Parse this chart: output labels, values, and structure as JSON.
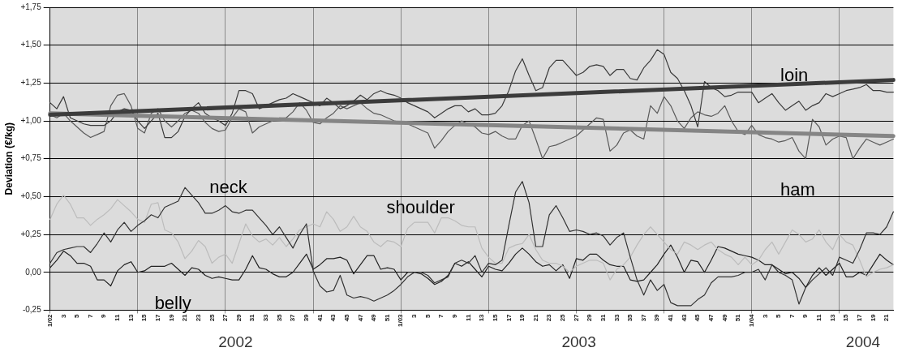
{
  "chart_data": {
    "type": "line",
    "ylabel": "Deviation (€/kg)",
    "categories": [
      "1/02",
      null,
      "3",
      null,
      "5",
      null,
      "7",
      null,
      "9",
      null,
      "11",
      null,
      "13",
      null,
      "15",
      null,
      "17",
      null,
      "19",
      null,
      "21",
      null,
      "23",
      null,
      "25",
      null,
      "27",
      null,
      "29",
      null,
      "31",
      null,
      "33",
      null,
      "35",
      null,
      "37",
      null,
      "39",
      null,
      "41",
      null,
      "43",
      null,
      "45",
      null,
      "47",
      null,
      "49",
      null,
      "51",
      null,
      "1/03",
      null,
      "3",
      null,
      "5",
      null,
      "7",
      null,
      "9",
      null,
      "11",
      null,
      "13",
      null,
      "15",
      null,
      "17",
      null,
      "19",
      null,
      "21",
      null,
      "23",
      null,
      "25",
      null,
      "27",
      null,
      "29",
      null,
      "31",
      null,
      "33",
      null,
      "35",
      null,
      "37",
      null,
      "39",
      null,
      "41",
      null,
      "43",
      null,
      "45",
      null,
      "47",
      null,
      "49",
      null,
      "51",
      null,
      "1/04",
      null,
      "3",
      null,
      "5",
      null,
      "7",
      null,
      "9",
      null,
      "11",
      null,
      "13",
      null,
      "15",
      null,
      "17",
      null,
      "19",
      null,
      "21",
      null
    ],
    "series": [
      {
        "color": "#3c3c3c",
        "values": [
          1.04,
          null,
          null,
          null,
          null,
          null,
          null,
          null,
          null,
          null,
          null,
          null,
          null,
          null,
          null,
          null,
          null,
          null,
          null,
          null,
          null,
          null,
          null,
          null,
          null,
          null,
          null,
          null,
          null,
          null,
          null,
          null,
          null,
          null,
          null,
          null,
          null,
          null,
          null,
          null,
          null,
          null,
          null,
          null,
          null,
          null,
          null,
          null,
          null,
          null,
          null,
          null,
          null,
          null,
          null,
          null,
          null,
          null,
          null,
          null,
          null,
          null,
          null,
          null,
          null,
          null,
          null,
          null,
          null,
          null,
          null,
          null,
          null,
          null,
          null,
          null,
          null,
          null,
          null,
          null,
          null,
          null,
          null,
          null,
          null,
          null,
          null,
          null,
          null,
          null,
          null,
          null,
          null,
          null,
          null,
          null,
          null,
          null,
          null,
          null,
          null,
          null,
          null,
          null,
          null,
          null,
          null,
          null,
          null,
          null,
          null,
          null,
          null,
          null,
          null,
          null,
          null,
          null,
          null,
          null,
          null,
          null,
          null,
          null,
          null,
          1.27
        ]
      },
      {
        "color": "#858585",
        "values": [
          1.05,
          null,
          null,
          null,
          null,
          null,
          null,
          null,
          null,
          null,
          null,
          null,
          null,
          null,
          null,
          null,
          null,
          null,
          null,
          null,
          null,
          null,
          null,
          null,
          null,
          null,
          null,
          null,
          null,
          null,
          null,
          null,
          null,
          null,
          null,
          null,
          null,
          null,
          null,
          null,
          null,
          null,
          null,
          null,
          null,
          null,
          null,
          null,
          null,
          null,
          null,
          null,
          null,
          null,
          null,
          null,
          null,
          null,
          null,
          null,
          null,
          null,
          null,
          null,
          null,
          null,
          null,
          null,
          null,
          null,
          null,
          null,
          null,
          null,
          null,
          null,
          null,
          null,
          null,
          null,
          null,
          null,
          null,
          null,
          null,
          null,
          null,
          null,
          null,
          null,
          null,
          null,
          null,
          null,
          null,
          null,
          null,
          null,
          null,
          null,
          null,
          null,
          null,
          null,
          null,
          null,
          null,
          null,
          null,
          null,
          null,
          null,
          null,
          null,
          null,
          null,
          null,
          null,
          null,
          null,
          null,
          null,
          null,
          null,
          null,
          0.9
        ]
      },
      {
        "name": "loin",
        "color": "#3a3a3a",
        "values": [
          1.12,
          1.08,
          1.16,
          1.02,
          1.0,
          0.98,
          0.97,
          0.97,
          0.97,
          1.0,
          1.06,
          1.08,
          1.07,
          1.0,
          0.95,
          1.0,
          1.05,
          0.89,
          0.89,
          0.93,
          1.03,
          1.08,
          1.12,
          1.05,
          1.02,
          1.0,
          0.97,
          1.05,
          1.2,
          1.2,
          1.18,
          1.08,
          1.1,
          1.12,
          1.14,
          1.15,
          1.18,
          1.16,
          1.14,
          1.12,
          1.1,
          1.15,
          1.12,
          1.08,
          1.1,
          1.13,
          1.17,
          1.14,
          1.18,
          1.2,
          1.18,
          1.17,
          1.15,
          1.12,
          1.1,
          1.08,
          1.06,
          1.02,
          1.05,
          1.08,
          1.1,
          1.1,
          1.06,
          1.08,
          1.04,
          1.04,
          1.05,
          1.1,
          1.2,
          1.33,
          1.41,
          1.3,
          1.2,
          1.22,
          1.35,
          1.4,
          1.4,
          1.35,
          1.3,
          1.32,
          1.36,
          1.37,
          1.36,
          1.3,
          1.34,
          1.34,
          1.28,
          1.27,
          1.35,
          1.4,
          1.47,
          1.44,
          1.32,
          1.28,
          1.2,
          1.1,
          0.96,
          1.26,
          1.22,
          1.2,
          1.16,
          1.17,
          1.19,
          1.19,
          1.19,
          1.12,
          1.15,
          1.18,
          1.12,
          1.07,
          1.1,
          1.13,
          1.07,
          1.1,
          1.12,
          1.18,
          1.16,
          1.18,
          1.2,
          1.21,
          1.22,
          1.24,
          1.2,
          1.2,
          1.19,
          1.19
        ]
      },
      {
        "name": "ham",
        "color": "#5a5a5a",
        "values": [
          1.04,
          1.02,
          1.05,
          1.0,
          0.96,
          0.92,
          0.89,
          0.91,
          0.93,
          1.1,
          1.17,
          1.18,
          1.1,
          0.95,
          0.92,
          1.05,
          1.08,
          1.0,
          0.96,
          1.0,
          1.05,
          1.07,
          1.05,
          0.99,
          0.95,
          0.93,
          0.94,
          1.02,
          1.08,
          1.06,
          0.92,
          0.96,
          0.98,
          1.0,
          1.02,
          1.02,
          1.06,
          1.12,
          1.07,
          0.99,
          0.98,
          1.02,
          1.05,
          1.1,
          1.08,
          1.1,
          1.12,
          1.08,
          1.05,
          1.04,
          1.02,
          1.0,
          0.99,
          0.98,
          0.96,
          0.94,
          0.92,
          0.82,
          0.87,
          0.93,
          0.97,
          1.0,
          0.98,
          0.96,
          0.92,
          0.91,
          0.93,
          0.9,
          0.88,
          0.88,
          0.97,
          1.0,
          0.88,
          0.75,
          0.83,
          0.84,
          0.86,
          0.88,
          0.9,
          0.94,
          0.98,
          1.02,
          1.01,
          0.8,
          0.84,
          0.92,
          0.94,
          0.9,
          0.88,
          1.1,
          1.05,
          1.16,
          1.1,
          1.0,
          0.95,
          1.02,
          1.06,
          1.04,
          1.03,
          1.05,
          1.1,
          1.0,
          0.93,
          0.91,
          0.97,
          0.91,
          0.89,
          0.88,
          0.86,
          0.87,
          0.89,
          0.8,
          0.75,
          1.01,
          0.96,
          0.84,
          0.88,
          0.9,
          0.89,
          0.75,
          0.82,
          0.88,
          0.86,
          0.84,
          0.86,
          0.88
        ]
      },
      {
        "name": "neck",
        "color": "#333333",
        "values": [
          0.06,
          0.13,
          0.15,
          0.16,
          0.17,
          0.17,
          0.13,
          0.19,
          0.26,
          0.2,
          0.28,
          0.33,
          0.27,
          0.31,
          0.34,
          0.38,
          0.36,
          0.43,
          0.45,
          0.47,
          0.56,
          0.51,
          0.46,
          0.39,
          0.39,
          0.41,
          0.44,
          0.4,
          0.39,
          0.41,
          0.41,
          0.36,
          0.31,
          0.25,
          0.3,
          0.23,
          0.16,
          0.25,
          0.32,
          0.01,
          -0.09,
          -0.13,
          -0.12,
          -0.02,
          -0.15,
          -0.17,
          -0.16,
          -0.17,
          -0.19,
          -0.17,
          -0.15,
          -0.12,
          -0.08,
          -0.03,
          0.0,
          0.0,
          -0.02,
          -0.07,
          -0.05,
          -0.03,
          0.06,
          0.08,
          0.06,
          0.11,
          0.0,
          0.06,
          0.05,
          0.08,
          0.31,
          0.53,
          0.6,
          0.46,
          0.17,
          0.17,
          0.38,
          0.44,
          0.36,
          0.27,
          0.28,
          0.27,
          0.25,
          0.26,
          0.24,
          0.18,
          0.23,
          0.26,
          0.1,
          -0.05,
          -0.15,
          -0.05,
          -0.12,
          -0.08,
          -0.2,
          -0.22,
          -0.22,
          -0.22,
          -0.18,
          -0.15,
          -0.07,
          -0.03,
          -0.03,
          -0.03,
          -0.02,
          0.0,
          0.0,
          0.02,
          -0.05,
          0.05,
          0.0,
          -0.02,
          -0.05,
          -0.21,
          -0.1,
          -0.05,
          -0.01,
          0.03,
          -0.02,
          0.1,
          0.08,
          0.06,
          0.15,
          0.26,
          0.26,
          0.25,
          0.3,
          0.4
        ]
      },
      {
        "name": "shoulder",
        "color": "#bcbcbc",
        "values": [
          0.35,
          0.45,
          0.51,
          0.45,
          0.36,
          0.36,
          0.31,
          0.35,
          0.38,
          0.42,
          0.48,
          0.44,
          0.4,
          0.35,
          0.33,
          0.45,
          0.46,
          0.28,
          0.26,
          0.2,
          0.09,
          0.14,
          0.21,
          0.17,
          0.06,
          0.1,
          0.12,
          0.06,
          0.19,
          0.32,
          0.24,
          0.2,
          0.22,
          0.18,
          0.23,
          0.17,
          0.22,
          0.28,
          0.3,
          0.32,
          0.3,
          0.4,
          0.35,
          0.27,
          0.3,
          0.37,
          0.3,
          0.27,
          0.2,
          0.17,
          0.21,
          0.2,
          0.17,
          0.29,
          0.33,
          0.33,
          0.33,
          0.26,
          0.36,
          0.36,
          0.34,
          0.31,
          0.3,
          0.3,
          0.16,
          0.1,
          0.06,
          0.06,
          0.16,
          0.18,
          0.19,
          0.25,
          0.15,
          0.08,
          0.06,
          0.06,
          0.04,
          0.0,
          0.04,
          0.06,
          0.08,
          0.08,
          0.06,
          -0.05,
          0.02,
          0.05,
          0.1,
          0.18,
          0.25,
          0.3,
          0.25,
          0.2,
          0.15,
          0.12,
          0.2,
          0.18,
          0.15,
          0.18,
          0.2,
          0.15,
          0.12,
          0.1,
          0.05,
          0.1,
          0.05,
          0.08,
          0.15,
          0.2,
          0.12,
          0.2,
          0.28,
          0.25,
          0.2,
          0.22,
          0.28,
          0.2,
          0.15,
          0.25,
          0.2,
          0.18,
          0.08,
          -0.03,
          0.0,
          0.02,
          0.03,
          0.05
        ]
      },
      {
        "name": "belly",
        "color": "#222222",
        "values": [
          0.03,
          0.08,
          0.14,
          0.11,
          0.06,
          0.06,
          0.04,
          -0.05,
          -0.05,
          -0.09,
          0.01,
          0.05,
          0.07,
          0.0,
          0.01,
          0.04,
          0.04,
          0.04,
          0.06,
          0.02,
          -0.02,
          0.03,
          0.02,
          -0.02,
          -0.04,
          -0.03,
          -0.04,
          -0.05,
          -0.05,
          0.02,
          0.11,
          0.03,
          0.02,
          -0.01,
          -0.03,
          -0.03,
          0.0,
          0.06,
          0.12,
          0.02,
          0.05,
          0.09,
          0.09,
          0.1,
          0.08,
          -0.01,
          0.05,
          0.11,
          0.11,
          0.02,
          0.03,
          0.02,
          -0.05,
          0.0,
          0.0,
          -0.01,
          -0.04,
          -0.08,
          -0.06,
          -0.02,
          0.06,
          0.04,
          0.07,
          0.02,
          -0.03,
          0.04,
          0.02,
          0.01,
          0.06,
          0.12,
          0.16,
          0.12,
          0.07,
          0.04,
          0.05,
          0.01,
          0.05,
          -0.04,
          0.09,
          0.08,
          0.12,
          0.12,
          0.08,
          0.05,
          0.04,
          0.04,
          -0.05,
          -0.06,
          -0.05,
          0.0,
          0.05,
          0.12,
          0.18,
          0.1,
          0.0,
          0.08,
          0.07,
          0.0,
          0.08,
          0.17,
          0.16,
          0.14,
          0.12,
          0.11,
          0.1,
          0.08,
          0.05,
          0.05,
          0.02,
          -0.01,
          0.0,
          -0.04,
          -0.1,
          -0.02,
          0.03,
          -0.02,
          0.02,
          0.06,
          -0.03,
          -0.03,
          0.0,
          -0.02,
          0.05,
          0.12,
          0.08,
          0.05
        ]
      }
    ],
    "ylim": [
      -0.25,
      1.75
    ],
    "yticks": [
      {
        "value": 1.75,
        "label": "+1,75"
      },
      {
        "value": 1.5,
        "label": "+1,50"
      },
      {
        "value": 1.25,
        "label": "+1,25"
      },
      {
        "value": 1.0,
        "label": "+1,00"
      },
      {
        "value": 0.75,
        "label": "+0,75"
      },
      {
        "value": 0.5,
        "label": "+0,50"
      },
      {
        "value": 0.25,
        "label": "+0,25"
      },
      {
        "value": 0,
        "label": "0,00"
      },
      {
        "value": -0.25,
        "label": "-0,25"
      }
    ],
    "annotations": [
      "2002",
      "2003",
      "2004"
    ],
    "grid": true,
    "legend": false,
    "marker": "none",
    "line_style": "solid"
  }
}
